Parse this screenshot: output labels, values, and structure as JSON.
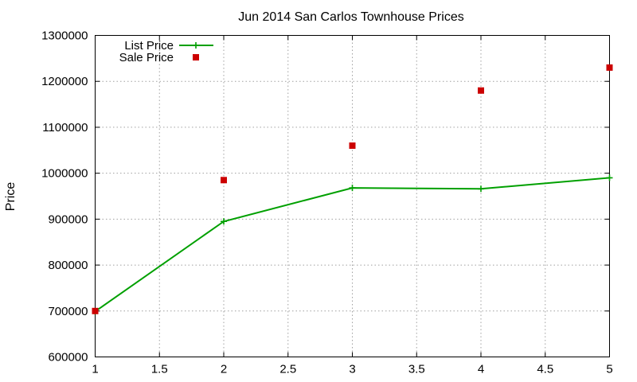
{
  "chart_data": {
    "type": "line",
    "title": "Jun 2014 San Carlos Townhouse Prices",
    "xlabel": "",
    "ylabel": "Price",
    "xlim": [
      1,
      5
    ],
    "ylim": [
      600000,
      1300000
    ],
    "x_ticks": [
      "1",
      "1.5",
      "2",
      "2.5",
      "3",
      "3.5",
      "4",
      "4.5",
      "5"
    ],
    "y_ticks": [
      "600000",
      "700000",
      "800000",
      "900000",
      "1000000",
      "1100000",
      "1200000",
      "1300000"
    ],
    "grid": true,
    "legend_position": "top-left",
    "series": [
      {
        "name": "List Price",
        "style": "linespoints",
        "color": "#00a000",
        "x": [
          1,
          2,
          3,
          4,
          5
        ],
        "y": [
          699000,
          895000,
          968000,
          966000,
          990000
        ]
      },
      {
        "name": "Sale Price",
        "style": "points",
        "color": "#cc0000",
        "x": [
          1,
          2,
          3,
          4,
          5
        ],
        "y": [
          700000,
          985000,
          1060000,
          1180000,
          1230000
        ]
      }
    ]
  }
}
